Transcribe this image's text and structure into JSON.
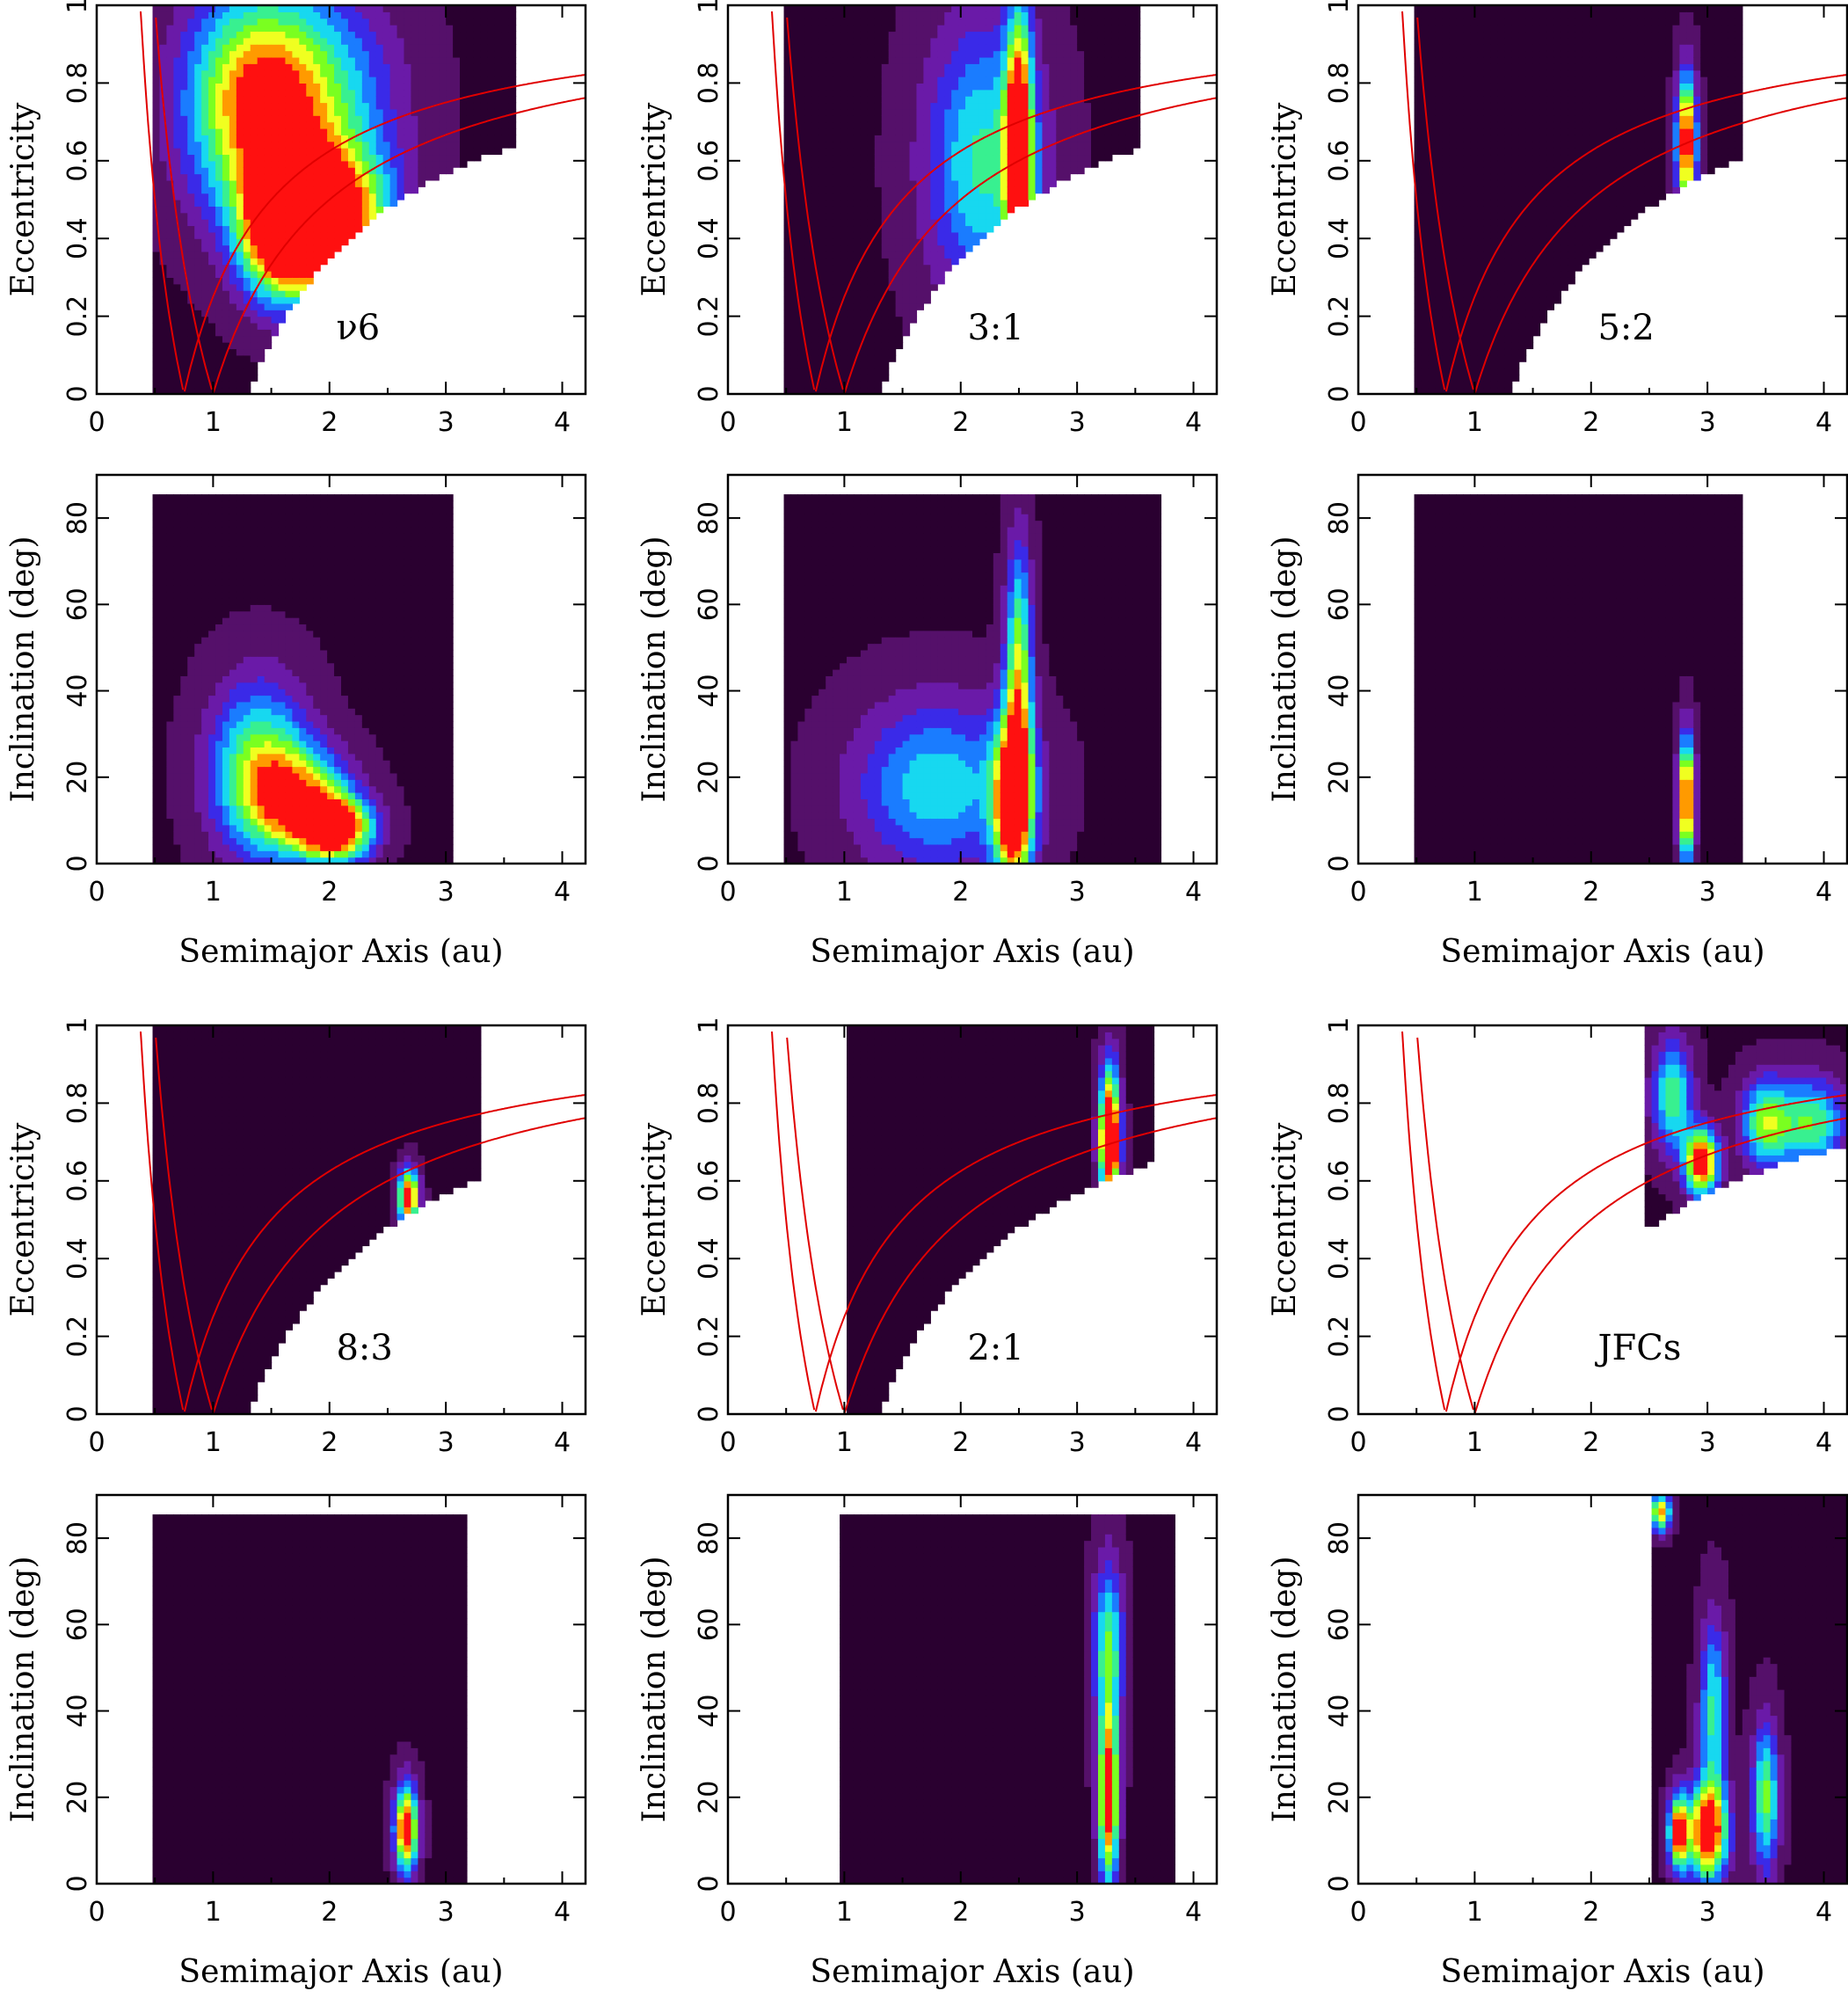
{
  "figure": {
    "colormap": [
      "#000000",
      "#2a0030",
      "#55106a",
      "#6a1aa8",
      "#3a2ae8",
      "#1a7cff",
      "#17d8f0",
      "#38f090",
      "#7aff20",
      "#f0ff20",
      "#ff9a00",
      "#ff1010"
    ]
  },
  "chart_data": [
    {
      "id": "nu6-ae",
      "type": "heatmap",
      "label": "ν6",
      "xlabel": "",
      "ylabel": "Eccentricity",
      "xlim": [
        0,
        4.2
      ],
      "ylim": [
        0,
        1
      ],
      "xticks": [
        "0",
        "1",
        "2",
        "3",
        "4"
      ],
      "yticks": [
        "0",
        "0.2",
        "0.4",
        "0.6",
        "0.8",
        "1"
      ],
      "curves": [
        "q = 0.75 au",
        "q = 1 au",
        "Q = 0.75 au",
        "Q = 1 au"
      ],
      "hotspots": [
        {
          "x": 2.0,
          "y": 0.45,
          "sx": 0.35,
          "sy": 0.12,
          "level": 1.0
        },
        {
          "x": 1.6,
          "y": 0.42,
          "sx": 0.25,
          "sy": 0.12,
          "level": 0.9
        },
        {
          "x": 1.3,
          "y": 0.75,
          "sx": 0.4,
          "sy": 0.2,
          "level": 0.6
        },
        {
          "x": 1.8,
          "y": 0.75,
          "sx": 0.5,
          "sy": 0.2,
          "level": 0.55
        }
      ]
    },
    {
      "id": "r31-ae",
      "type": "heatmap",
      "label": "3:1",
      "xlabel": "",
      "ylabel": "Eccentricity",
      "xlim": [
        0,
        4.2
      ],
      "ylim": [
        0,
        1
      ],
      "xticks": [
        "0",
        "1",
        "2",
        "3",
        "4"
      ],
      "yticks": [
        "0",
        "0.2",
        "0.4",
        "0.6",
        "0.8",
        "1"
      ],
      "curves": [
        "q = 0.75 au",
        "q = 1 au",
        "Q = 0.75 au",
        "Q = 1 au"
      ],
      "hotspots": [
        {
          "x": 2.5,
          "y": 0.62,
          "sx": 0.08,
          "sy": 0.25,
          "level": 1.0
        },
        {
          "x": 2.2,
          "y": 0.6,
          "sx": 0.35,
          "sy": 0.25,
          "level": 0.5
        }
      ]
    },
    {
      "id": "r52-ae",
      "type": "heatmap",
      "label": "5:2",
      "xlabel": "",
      "ylabel": "Eccentricity",
      "xlim": [
        0,
        4.2
      ],
      "ylim": [
        0,
        1
      ],
      "xticks": [
        "0",
        "1",
        "2",
        "3",
        "4"
      ],
      "yticks": [
        "0",
        "0.2",
        "0.4",
        "0.6",
        "0.8",
        "1"
      ],
      "curves": [
        "q = 0.75 au",
        "q = 1 au",
        "Q = 0.75 au",
        "Q = 1 au"
      ],
      "hotspots": [
        {
          "x": 2.82,
          "y": 0.65,
          "sx": 0.06,
          "sy": 0.12,
          "level": 1.0
        }
      ]
    },
    {
      "id": "nu6-ai",
      "type": "heatmap",
      "label": "",
      "xlabel": "Semimajor Axis (au)",
      "ylabel": "Inclination (deg)",
      "xlim": [
        0,
        4.2
      ],
      "ylim": [
        0,
        90
      ],
      "xticks": [
        "0",
        "1",
        "2",
        "3",
        "4"
      ],
      "yticks": [
        "0",
        "20",
        "40",
        "60",
        "80"
      ],
      "curves": [],
      "hotspots": [
        {
          "x": 2.05,
          "y": 8,
          "sx": 0.22,
          "sy": 5,
          "level": 1.0
        },
        {
          "x": 1.4,
          "y": 22,
          "sx": 0.3,
          "sy": 14,
          "level": 0.6
        },
        {
          "x": 1.75,
          "y": 15,
          "sx": 0.3,
          "sy": 8,
          "level": 0.65
        }
      ]
    },
    {
      "id": "r31-ai",
      "type": "heatmap",
      "label": "",
      "xlabel": "Semimajor Axis (au)",
      "ylabel": "Inclination (deg)",
      "xlim": [
        0,
        4.2
      ],
      "ylim": [
        0,
        90
      ],
      "xticks": [
        "0",
        "1",
        "2",
        "3",
        "4"
      ],
      "yticks": [
        "0",
        "20",
        "40",
        "60",
        "80"
      ],
      "curves": [],
      "hotspots": [
        {
          "x": 2.45,
          "y": 14,
          "sx": 0.12,
          "sy": 14,
          "level": 1.0
        },
        {
          "x": 2.5,
          "y": 45,
          "sx": 0.08,
          "sy": 20,
          "level": 0.65
        },
        {
          "x": 1.8,
          "y": 18,
          "sx": 0.5,
          "sy": 14,
          "level": 0.45
        }
      ]
    },
    {
      "id": "r52-ai",
      "type": "heatmap",
      "label": "",
      "xlabel": "Semimajor Axis (au)",
      "ylabel": "Inclination (deg)",
      "xlim": [
        0,
        4.2
      ],
      "ylim": [
        0,
        90
      ],
      "xticks": [
        "0",
        "1",
        "2",
        "3",
        "4"
      ],
      "yticks": [
        "0",
        "20",
        "40",
        "60",
        "80"
      ],
      "curves": [],
      "hotspots": [
        {
          "x": 2.82,
          "y": 15,
          "sx": 0.05,
          "sy": 10,
          "level": 1.0
        }
      ]
    },
    {
      "id": "r83-ae",
      "type": "heatmap",
      "label": "8:3",
      "xlabel": "",
      "ylabel": "Eccentricity",
      "xlim": [
        0,
        4.2
      ],
      "ylim": [
        0,
        1
      ],
      "xticks": [
        "0",
        "1",
        "2",
        "3",
        "4"
      ],
      "yticks": [
        "0",
        "0.2",
        "0.4",
        "0.6",
        "0.8",
        "1"
      ],
      "curves": [
        "q = 0.75 au",
        "q = 1 au",
        "Q = 0.75 au",
        "Q = 1 au"
      ],
      "hotspots": [
        {
          "x": 2.68,
          "y": 0.56,
          "sx": 0.06,
          "sy": 0.05,
          "level": 1.0
        }
      ]
    },
    {
      "id": "r21-ae",
      "type": "heatmap",
      "label": "2:1",
      "xlabel": "",
      "ylabel": "Eccentricity",
      "xlim": [
        0,
        4.2
      ],
      "ylim": [
        0,
        1
      ],
      "xticks": [
        "0",
        "1",
        "2",
        "3",
        "4"
      ],
      "yticks": [
        "0",
        "0.2",
        "0.4",
        "0.6",
        "0.8",
        "1"
      ],
      "curves": [
        "q = 0.75 au",
        "q = 1 au",
        "Q = 0.75 au",
        "Q = 1 au"
      ],
      "hotspots": [
        {
          "x": 3.28,
          "y": 0.68,
          "sx": 0.06,
          "sy": 0.08,
          "level": 1.0
        },
        {
          "x": 3.28,
          "y": 0.8,
          "sx": 0.06,
          "sy": 0.1,
          "level": 0.6
        }
      ]
    },
    {
      "id": "jfc-ae",
      "type": "heatmap",
      "label": "JFCs",
      "xlabel": "",
      "ylabel": "Eccentricity",
      "xlim": [
        0,
        4.2
      ],
      "ylim": [
        0,
        1
      ],
      "xticks": [
        "0",
        "1",
        "2",
        "3",
        "4"
      ],
      "yticks": [
        "0",
        "0.2",
        "0.4",
        "0.6",
        "0.8",
        "1"
      ],
      "curves": [
        "q = 0.75 au",
        "q = 1 au",
        "Q = 0.75 au",
        "Q = 1 au"
      ],
      "hotspots": [
        {
          "x": 2.95,
          "y": 0.65,
          "sx": 0.1,
          "sy": 0.06,
          "level": 1.0
        },
        {
          "x": 3.5,
          "y": 0.75,
          "sx": 0.15,
          "sy": 0.08,
          "level": 0.6
        },
        {
          "x": 2.7,
          "y": 0.82,
          "sx": 0.12,
          "sy": 0.1,
          "level": 0.55
        },
        {
          "x": 3.9,
          "y": 0.75,
          "sx": 0.2,
          "sy": 0.08,
          "level": 0.55
        }
      ]
    },
    {
      "id": "r83-ai",
      "type": "heatmap",
      "label": "",
      "xlabel": "Semimajor Axis (au)",
      "ylabel": "Inclination (deg)",
      "xlim": [
        0,
        4.2
      ],
      "ylim": [
        0,
        90
      ],
      "xticks": [
        "0",
        "1",
        "2",
        "3",
        "4"
      ],
      "yticks": [
        "0",
        "20",
        "40",
        "60",
        "80"
      ],
      "curves": [],
      "hotspots": [
        {
          "x": 2.66,
          "y": 13,
          "sx": 0.07,
          "sy": 7,
          "level": 1.0
        }
      ]
    },
    {
      "id": "r21-ai",
      "type": "heatmap",
      "label": "",
      "xlabel": "Semimajor Axis (au)",
      "ylabel": "Inclination (deg)",
      "xlim": [
        0,
        4.2
      ],
      "ylim": [
        0,
        90
      ],
      "xticks": [
        "0",
        "1",
        "2",
        "3",
        "4"
      ],
      "yticks": [
        "0",
        "20",
        "40",
        "60",
        "80"
      ],
      "curves": [],
      "hotspots": [
        {
          "x": 3.27,
          "y": 20,
          "sx": 0.06,
          "sy": 14,
          "level": 1.0
        },
        {
          "x": 3.27,
          "y": 55,
          "sx": 0.09,
          "sy": 14,
          "level": 0.55
        }
      ]
    },
    {
      "id": "jfc-ai",
      "type": "heatmap",
      "label": "",
      "xlabel": "Semimajor Axis (au)",
      "ylabel": "Inclination (deg)",
      "xlim": [
        0,
        4.2
      ],
      "ylim": [
        0,
        90
      ],
      "xticks": [
        "0",
        "1",
        "2",
        "3",
        "4"
      ],
      "yticks": [
        "0",
        "20",
        "40",
        "60",
        "80"
      ],
      "curves": [],
      "hotspots": [
        {
          "x": 3.0,
          "y": 12,
          "sx": 0.12,
          "sy": 8,
          "level": 1.0
        },
        {
          "x": 2.75,
          "y": 12,
          "sx": 0.06,
          "sy": 6,
          "level": 0.9
        },
        {
          "x": 3.5,
          "y": 20,
          "sx": 0.08,
          "sy": 12,
          "level": 0.6
        },
        {
          "x": 3.05,
          "y": 40,
          "sx": 0.08,
          "sy": 15,
          "level": 0.5
        },
        {
          "x": 2.6,
          "y": 86,
          "sx": 0.06,
          "sy": 3,
          "level": 0.8
        }
      ]
    }
  ]
}
